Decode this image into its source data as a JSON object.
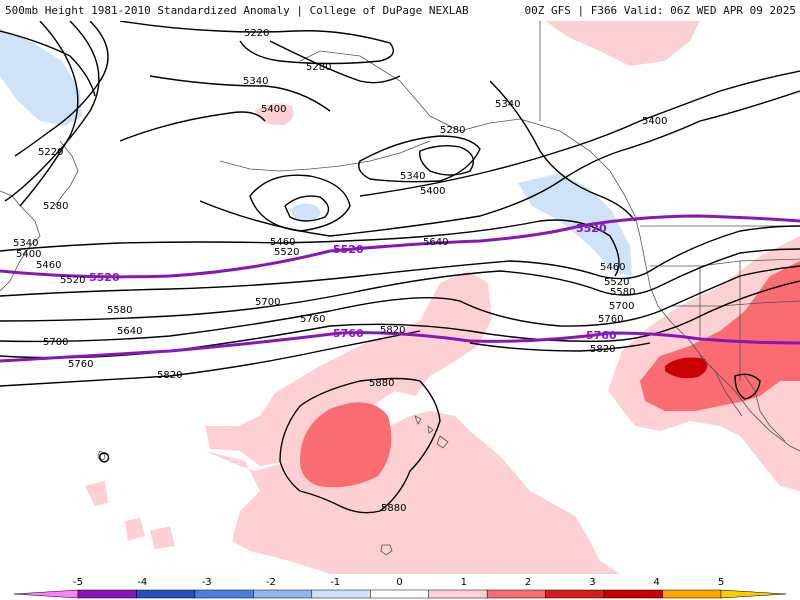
{
  "header": {
    "left": "500mb Height 1981-2010 Standardized Anomaly | College of DuPage NEXLAB",
    "right": "00Z GFS | F366 Valid: 06Z WED APR 09 2025"
  },
  "colors": {
    "contour": "#000000",
    "highlight_contour": "#8a16b8",
    "anomaly_positive_1": "#fdd0d4",
    "anomaly_positive_2": "#f96c71",
    "anomaly_positive_3": "#c80000",
    "anomaly_negative_1": "#cfe3f8",
    "coastline": "#555555"
  },
  "contour_labels": [
    {
      "id": "5220a",
      "text": "5220"
    },
    {
      "id": "5280a",
      "text": "5280"
    },
    {
      "id": "5340a",
      "text": "5340"
    },
    {
      "id": "5400a",
      "text": "5400"
    },
    {
      "id": "5220b",
      "text": "5220"
    },
    {
      "id": "5280b",
      "text": "5280"
    },
    {
      "id": "5340b",
      "text": "5340"
    },
    {
      "id": "5400b",
      "text": "5400"
    },
    {
      "id": "5460a",
      "text": "5460"
    },
    {
      "id": "5520a",
      "text": "5520"
    },
    {
      "id": "5340c",
      "text": "5340"
    },
    {
      "id": "5280c",
      "text": "5280"
    },
    {
      "id": "5340d",
      "text": "5340"
    },
    {
      "id": "5400c",
      "text": "5400"
    },
    {
      "id": "5400d",
      "text": "5400"
    },
    {
      "id": "5460b",
      "text": "5460"
    },
    {
      "id": "5520b",
      "text": "5520"
    },
    {
      "id": "5640a",
      "text": "5640"
    },
    {
      "id": "5460c",
      "text": "5460"
    },
    {
      "id": "5520c",
      "text": "5520"
    },
    {
      "id": "5580a",
      "text": "5580"
    },
    {
      "id": "5580b",
      "text": "5580"
    },
    {
      "id": "5640b",
      "text": "5640"
    },
    {
      "id": "5700a",
      "text": "5700"
    },
    {
      "id": "5700b",
      "text": "5700"
    },
    {
      "id": "5760a",
      "text": "5760"
    },
    {
      "id": "5820a",
      "text": "5820"
    },
    {
      "id": "5700c",
      "text": "5700"
    },
    {
      "id": "5760b",
      "text": "5760"
    },
    {
      "id": "5760c",
      "text": "5760"
    },
    {
      "id": "5820b",
      "text": "5820"
    },
    {
      "id": "5820c",
      "text": "5820"
    },
    {
      "id": "5880a",
      "text": "5880"
    },
    {
      "id": "5880b",
      "text": "5880"
    }
  ],
  "highlight_labels": [
    {
      "id": "p5520a",
      "text": "5520"
    },
    {
      "id": "p5520b",
      "text": "5520"
    },
    {
      "id": "p5520c",
      "text": "5520"
    },
    {
      "id": "p5760a",
      "text": "5760"
    },
    {
      "id": "p5760b",
      "text": "5760"
    }
  ],
  "colorbar": {
    "ticks": [
      "-5",
      "-4",
      "-3",
      "-2",
      "-1",
      "0",
      "1",
      "2",
      "3",
      "4",
      "5"
    ],
    "bins": [
      "#ff7fff",
      "#8a16b8",
      "#2450b8",
      "#4a7fe0",
      "#8fb6ee",
      "#cfe3f8",
      "#ffffff",
      "#fdd0d4",
      "#f96c71",
      "#d61e1e",
      "#c80000",
      "#ffa500",
      "#ffcc00"
    ]
  }
}
